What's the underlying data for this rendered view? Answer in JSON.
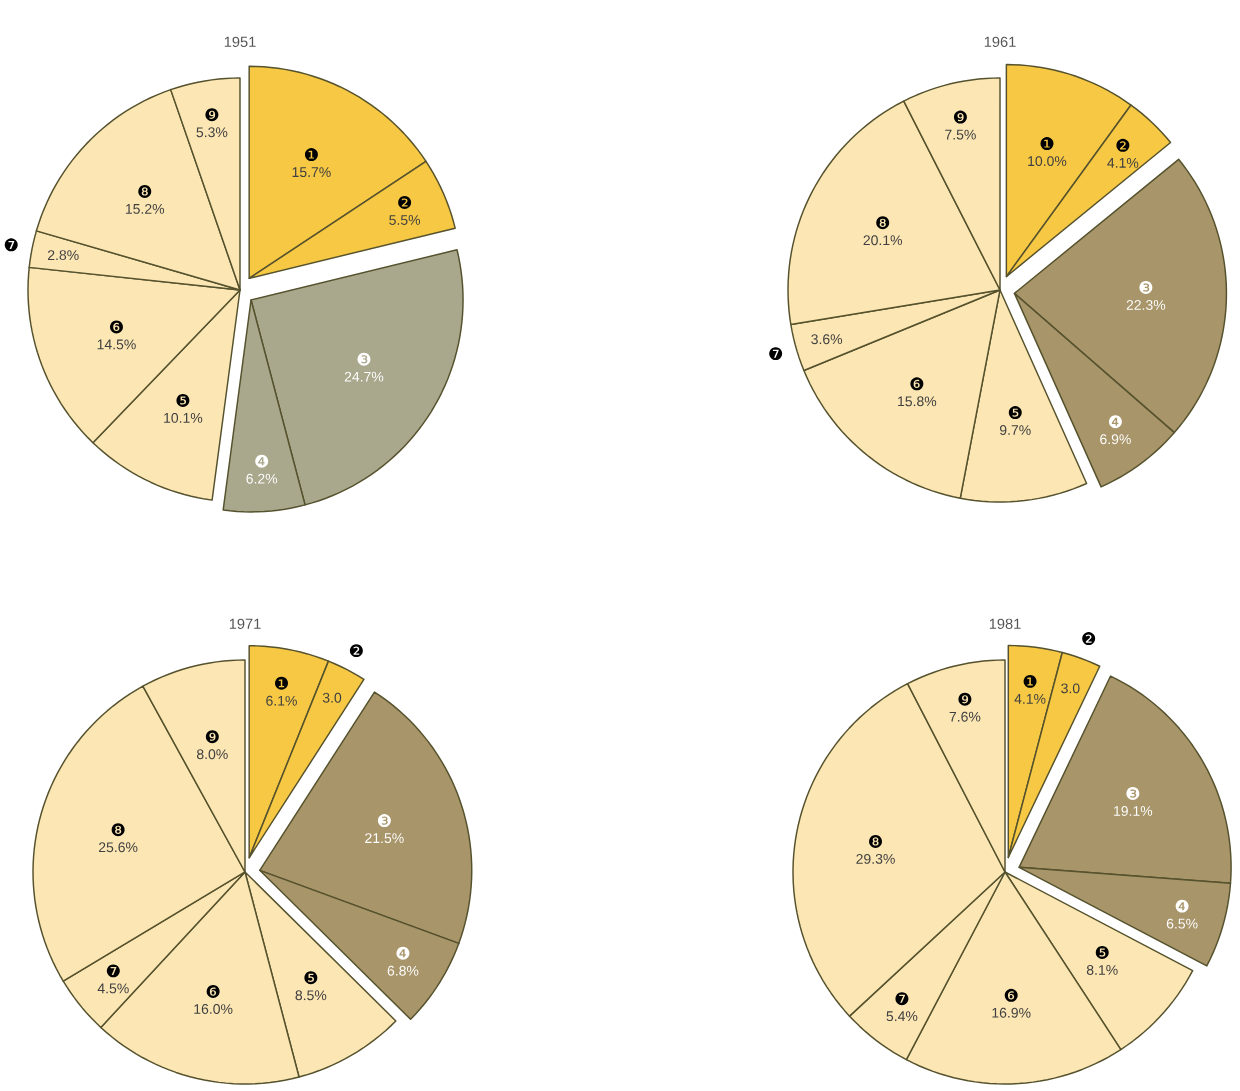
{
  "chart_data": [
    {
      "type": "pie",
      "title": "1951",
      "categories": [
        "❶",
        "❷",
        "❸",
        "❹",
        "❺",
        "❻",
        "❼",
        "❽",
        "❾"
      ],
      "values": [
        15.7,
        5.5,
        24.7,
        6.2,
        10.1,
        14.5,
        2.8,
        15.2,
        5.3
      ],
      "value_labels": [
        "15.7%",
        "5.5%",
        "24.7%",
        "6.2%",
        "10.1%",
        "14.5%",
        "2.8%",
        "15.2%",
        "5.3%"
      ],
      "colors": [
        "#f7c843",
        "#f7c843",
        "#a9a78c",
        "#a9a78c",
        "#fbe6b4",
        "#fbe6b4",
        "#fbe6b4",
        "#fbe6b4",
        "#fbe6b4"
      ]
    },
    {
      "type": "pie",
      "title": "1961",
      "categories": [
        "❶",
        "❷",
        "❸",
        "❹",
        "❺",
        "❻",
        "❼",
        "❽",
        "❾"
      ],
      "values": [
        10.0,
        4.1,
        22.3,
        6.9,
        9.7,
        15.8,
        3.6,
        20.1,
        7.5
      ],
      "value_labels": [
        "10.0%",
        "4.1%",
        "22.3%",
        "6.9%",
        "9.7%",
        "15.8%",
        "3.6%",
        "20.1%",
        "7.5%"
      ],
      "colors": [
        "#f7c843",
        "#f7c843",
        "#a8956a",
        "#a8956a",
        "#fbe6b4",
        "#fbe6b4",
        "#fbe6b4",
        "#fbe6b4",
        "#fbe6b4"
      ]
    },
    {
      "type": "pie",
      "title": "1971",
      "categories": [
        "❶",
        "❷",
        "❸",
        "❹",
        "❺",
        "❻",
        "❼",
        "❽",
        "❾"
      ],
      "values": [
        6.1,
        3.0,
        21.5,
        6.8,
        8.5,
        16.0,
        4.5,
        25.6,
        8.0
      ],
      "value_labels": [
        "6.1%",
        "3.0",
        "21.5%",
        "6.8%",
        "8.5%",
        "16.0%",
        "4.5%",
        "25.6%",
        "8.0%"
      ],
      "colors": [
        "#f7c843",
        "#f7c843",
        "#a8956a",
        "#a8956a",
        "#fbe6b4",
        "#fbe6b4",
        "#fbe6b4",
        "#fbe6b4",
        "#fbe6b4"
      ]
    },
    {
      "type": "pie",
      "title": "1981",
      "categories": [
        "❶",
        "❷",
        "❸",
        "❹",
        "❺",
        "❻",
        "❼",
        "❽",
        "❾"
      ],
      "values": [
        4.1,
        3.0,
        19.1,
        6.5,
        8.1,
        16.9,
        5.4,
        29.3,
        7.6
      ],
      "value_labels": [
        "4.1%",
        "3.0",
        "19.1%",
        "6.5%",
        "8.1%",
        "16.9%",
        "5.4%",
        "29.3%",
        "7.6%"
      ],
      "colors": [
        "#f7c843",
        "#f7c843",
        "#a8956a",
        "#a8956a",
        "#fbe6b4",
        "#fbe6b4",
        "#fbe6b4",
        "#fbe6b4",
        "#fbe6b4"
      ]
    }
  ]
}
